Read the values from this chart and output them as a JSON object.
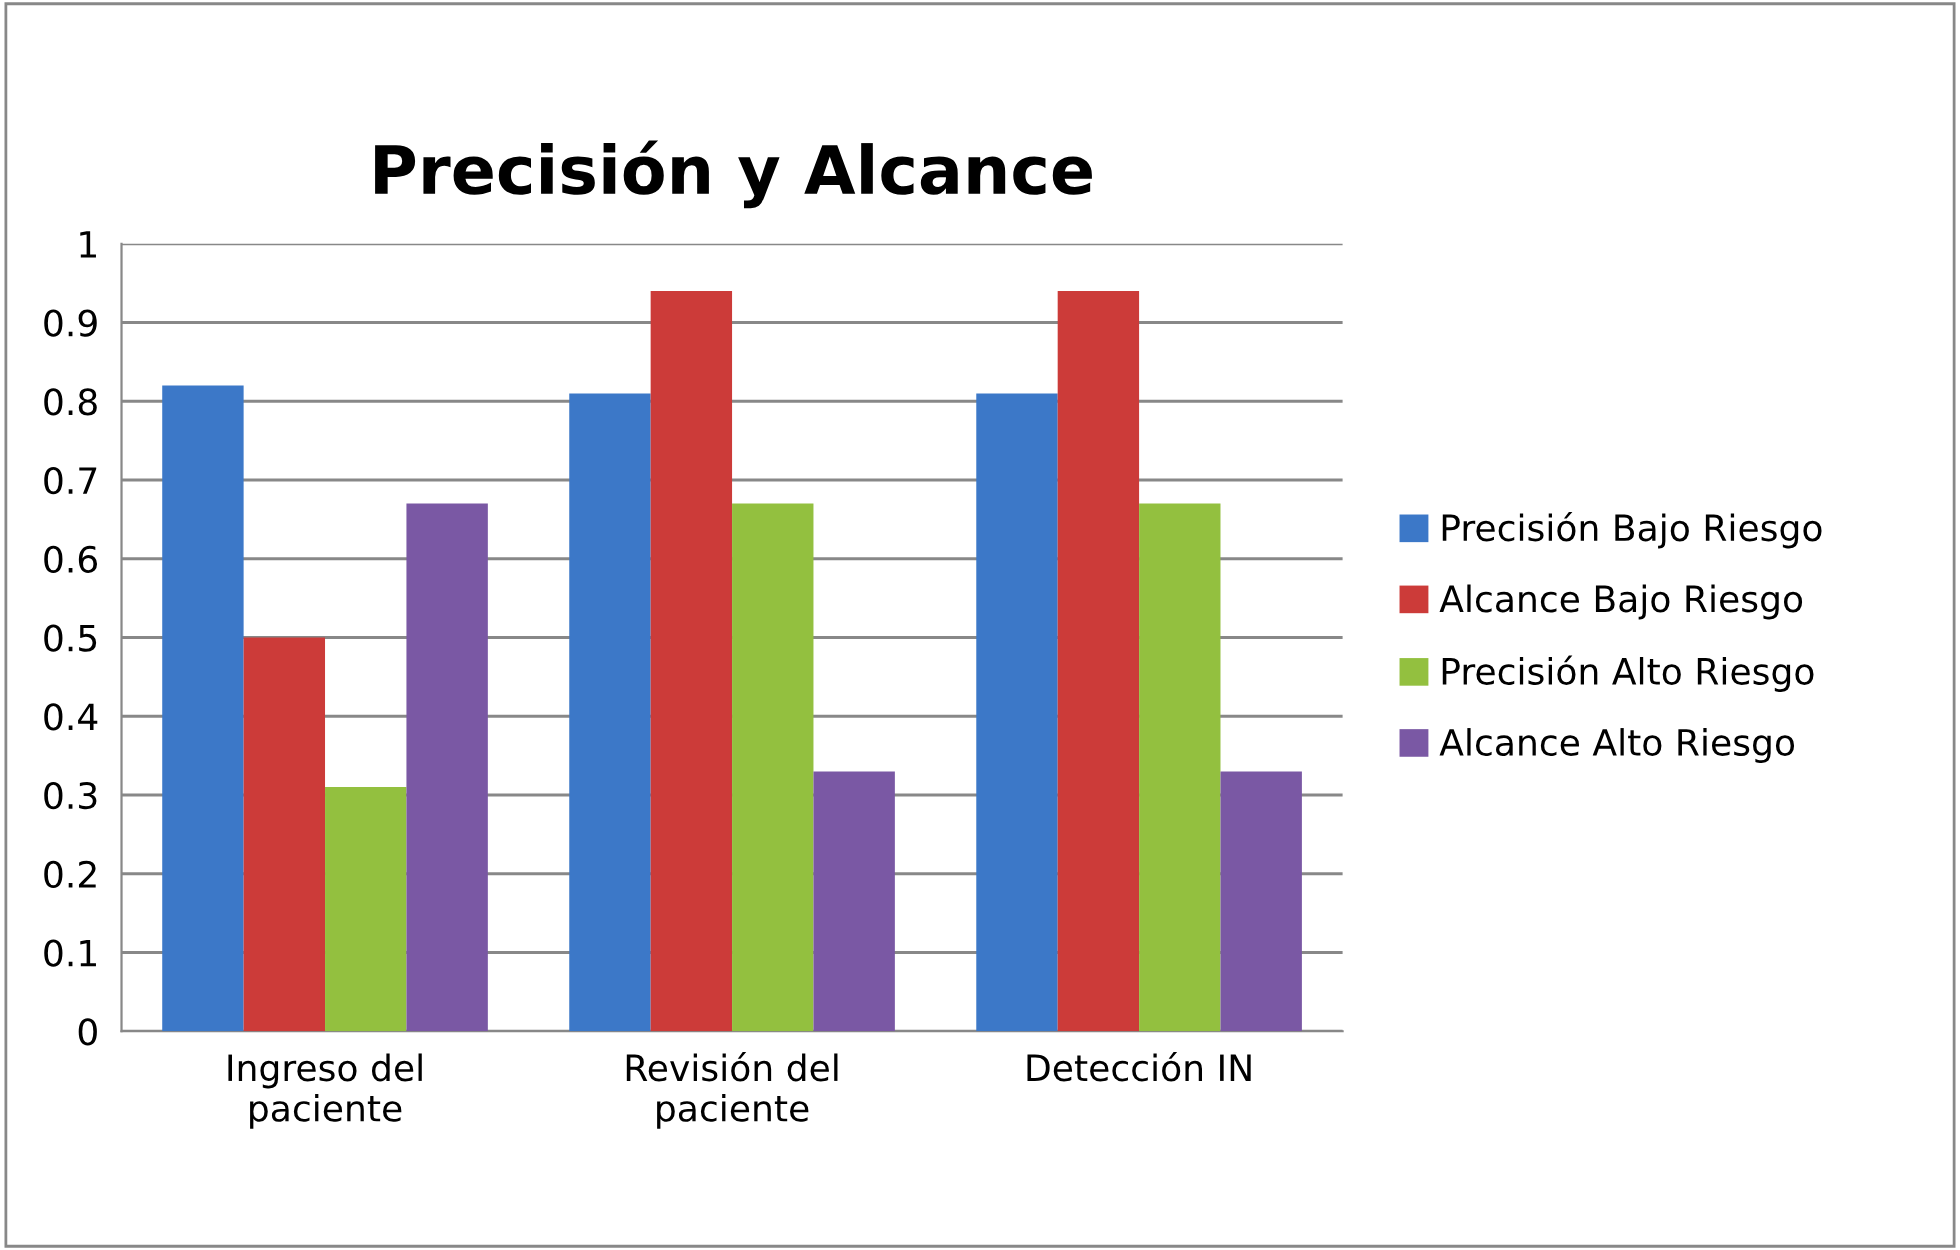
{
  "chart_data": {
    "type": "bar",
    "title": "Precisión y Alcance",
    "categories": [
      "Ingreso del\npaciente",
      "Revisión del\npaciente",
      "Detección IN"
    ],
    "series": [
      {
        "name": "Precisión Bajo Riesgo",
        "color": "#3c78c8",
        "values": [
          0.82,
          0.81,
          0.81
        ]
      },
      {
        "name": "Alcance Bajo Riesgo",
        "color": "#cc3b39",
        "values": [
          0.5,
          0.94,
          0.94
        ]
      },
      {
        "name": "Precisión Alto Riesgo",
        "color": "#93c03f",
        "values": [
          0.31,
          0.67,
          0.67
        ]
      },
      {
        "name": "Alcance Alto Riesgo",
        "color": "#7a58a4",
        "values": [
          0.67,
          0.33,
          0.33
        ]
      }
    ],
    "ylim": [
      0,
      1
    ],
    "yticks": [
      0,
      0.1,
      0.2,
      0.3,
      0.4,
      0.5,
      0.6,
      0.7,
      0.8,
      0.9,
      1
    ],
    "grid": "y",
    "legend": "right"
  }
}
